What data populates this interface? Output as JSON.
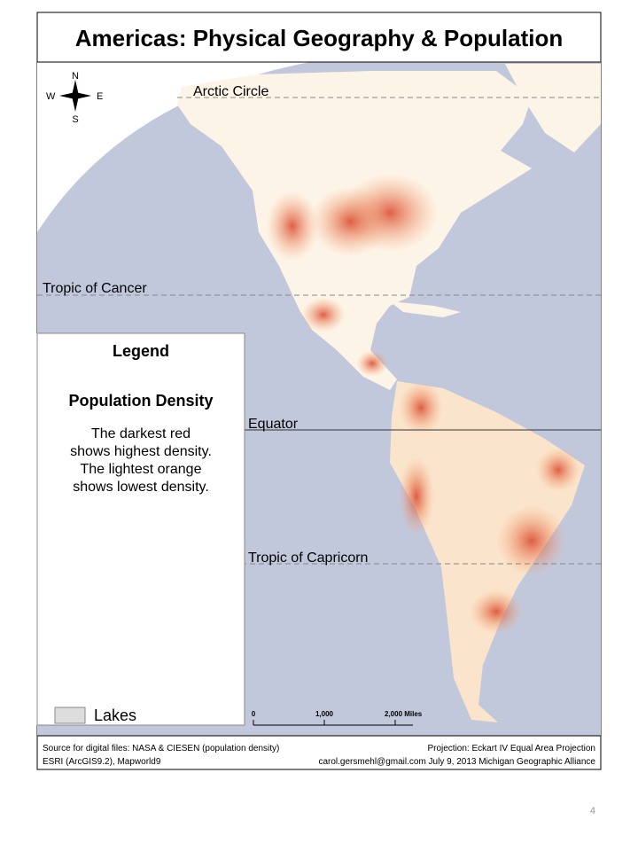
{
  "title": "Americas: Physical Geography & Population",
  "compass": {
    "n": "N",
    "s": "S",
    "e": "E",
    "w": "W"
  },
  "lines": {
    "arctic": "Arctic Circle",
    "cancer": "Tropic of Cancer",
    "equator": "Equator",
    "capricorn": "Tropic of Capricorn"
  },
  "legend": {
    "title": "Legend",
    "subtitle": "Population Density",
    "text": [
      "The darkest red",
      "shows highest density.",
      "The lightest orange",
      "shows lowest density."
    ],
    "lakes": "Lakes"
  },
  "scale": {
    "labels": [
      "0",
      "1,000",
      "2,000 Miles"
    ]
  },
  "footer": {
    "left": [
      "Source for digital files:  NASA & CIESEN (population density)",
      "ESRI (ArcGIS9.2), Mapworld9"
    ],
    "right": [
      "Projection:  Eckart IV Equal Area Projection",
      "carol.gersmehl@gmail.com  July 9, 2013  Michigan Geographic Alliance"
    ]
  },
  "page_number": "4"
}
